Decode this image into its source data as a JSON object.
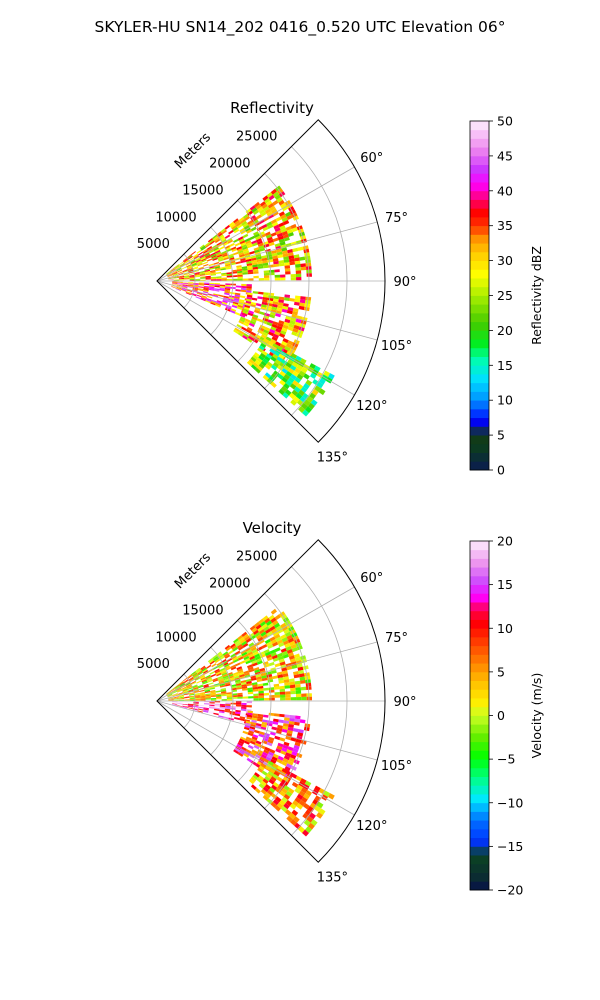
{
  "figure": {
    "suptitle": "SKYLER-HU  SN14_202  0416_0.520 UTC Elevation 06°"
  },
  "chart_data": [
    {
      "type": "heatmap",
      "panel": "reflectivity",
      "title": "Reflectivity",
      "projection": "polar-sector",
      "theta_range_deg": [
        45,
        135
      ],
      "theta_ticks": [
        "60°",
        "75°",
        "90°",
        "105°",
        "120°",
        "135°"
      ],
      "theta_tick_values": [
        60,
        75,
        90,
        105,
        120,
        135
      ],
      "r_label": "Meters",
      "r_ticks": [
        "5000",
        "10000",
        "15000",
        "20000",
        "25000"
      ],
      "r_tick_values": [
        5000,
        10000,
        15000,
        20000,
        25000
      ],
      "r_max": 30000,
      "grid": true,
      "colorbar": {
        "label": "Reflectivity dBZ",
        "range": [
          0,
          50
        ],
        "ticks": [
          "0",
          "5",
          "10",
          "15",
          "20",
          "25",
          "30",
          "35",
          "40",
          "45",
          "50"
        ]
      },
      "echo_regions": [
        {
          "theta": [
            52,
            89
          ],
          "r": [
            1500,
            20000
          ],
          "value": 30
        },
        {
          "theta": [
            92,
            112
          ],
          "r": [
            2000,
            12000
          ],
          "value": 36
        },
        {
          "theta": [
            96,
            123
          ],
          "r": [
            12000,
            20000
          ],
          "value": 32
        },
        {
          "theta": [
            118,
            132
          ],
          "r": [
            16000,
            26000
          ],
          "value": 22
        }
      ]
    },
    {
      "type": "heatmap",
      "panel": "velocity",
      "title": "Velocity",
      "projection": "polar-sector",
      "theta_range_deg": [
        45,
        135
      ],
      "theta_ticks": [
        "60°",
        "75°",
        "90°",
        "105°",
        "120°",
        "135°"
      ],
      "theta_tick_values": [
        60,
        75,
        90,
        105,
        120,
        135
      ],
      "r_label": "Meters",
      "r_ticks": [
        "5000",
        "10000",
        "15000",
        "20000",
        "25000"
      ],
      "r_tick_values": [
        5000,
        10000,
        15000,
        20000,
        25000
      ],
      "r_max": 30000,
      "grid": true,
      "colorbar": {
        "label": "Velocity (m/s)",
        "range": [
          -20,
          20
        ],
        "ticks": [
          "−20",
          "−15",
          "−10",
          "−5",
          "0",
          "5",
          "10",
          "15",
          "20"
        ]
      },
      "echo_regions": [
        {
          "theta": [
            52,
            89
          ],
          "r": [
            1500,
            20000
          ],
          "value": 3
        },
        {
          "theta": [
            90,
            104
          ],
          "r": [
            2000,
            12000
          ],
          "value": 15
        },
        {
          "theta": [
            96,
            123
          ],
          "r": [
            12000,
            20000
          ],
          "value": 10
        },
        {
          "theta": [
            118,
            132
          ],
          "r": [
            16000,
            26000
          ],
          "value": 5
        }
      ]
    }
  ]
}
